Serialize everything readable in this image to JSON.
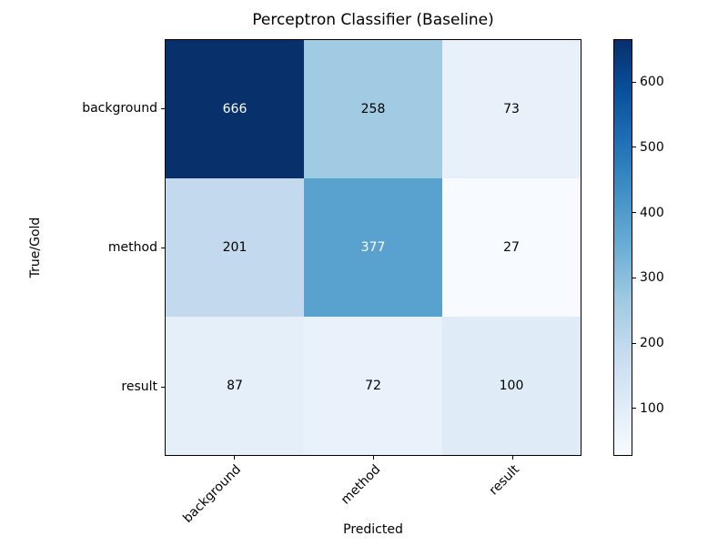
{
  "figure": {
    "background": "#ffffff"
  },
  "chart_data": {
    "type": "heatmap",
    "title": "Perceptron Classifier (Baseline)",
    "xlabel": "Predicted",
    "ylabel": "True/Gold",
    "x_categories": [
      "background",
      "method",
      "result"
    ],
    "y_categories": [
      "background",
      "method",
      "result"
    ],
    "values": [
      [
        666,
        258,
        73
      ],
      [
        201,
        377,
        27
      ],
      [
        87,
        72,
        100
      ]
    ],
    "vmin": 27,
    "vmax": 666,
    "colormap": "Blues",
    "legend_position": "right-colorbar",
    "grid": false,
    "colorbar_ticks": [
      100,
      200,
      300,
      400,
      500,
      600
    ],
    "colorbar_gradient": [
      "#f7fbff",
      "#deebf7",
      "#c6dbef",
      "#9ecae1",
      "#6baed6",
      "#4292c6",
      "#2171b5",
      "#08519c",
      "#08306b"
    ],
    "cells": [
      {
        "row": "background",
        "col": "background",
        "value": 666,
        "bg": "#08306b",
        "fg": "#ffffff"
      },
      {
        "row": "background",
        "col": "method",
        "value": 258,
        "bg": "#a0cbe2",
        "fg": "#000000"
      },
      {
        "row": "background",
        "col": "result",
        "value": 73,
        "bg": "#e8f1fa",
        "fg": "#000000"
      },
      {
        "row": "method",
        "col": "background",
        "value": 201,
        "bg": "#c3d9ed",
        "fg": "#000000"
      },
      {
        "row": "method",
        "col": "method",
        "value": 377,
        "bg": "#59a1ce",
        "fg": "#ffffff"
      },
      {
        "row": "method",
        "col": "result",
        "value": 27,
        "bg": "#f7fbff",
        "fg": "#000000"
      },
      {
        "row": "result",
        "col": "background",
        "value": 87,
        "bg": "#e4eff9",
        "fg": "#000000"
      },
      {
        "row": "result",
        "col": "method",
        "value": 72,
        "bg": "#e9f2fa",
        "fg": "#000000"
      },
      {
        "row": "result",
        "col": "result",
        "value": 100,
        "bg": "#dfecf7",
        "fg": "#000000"
      }
    ]
  }
}
